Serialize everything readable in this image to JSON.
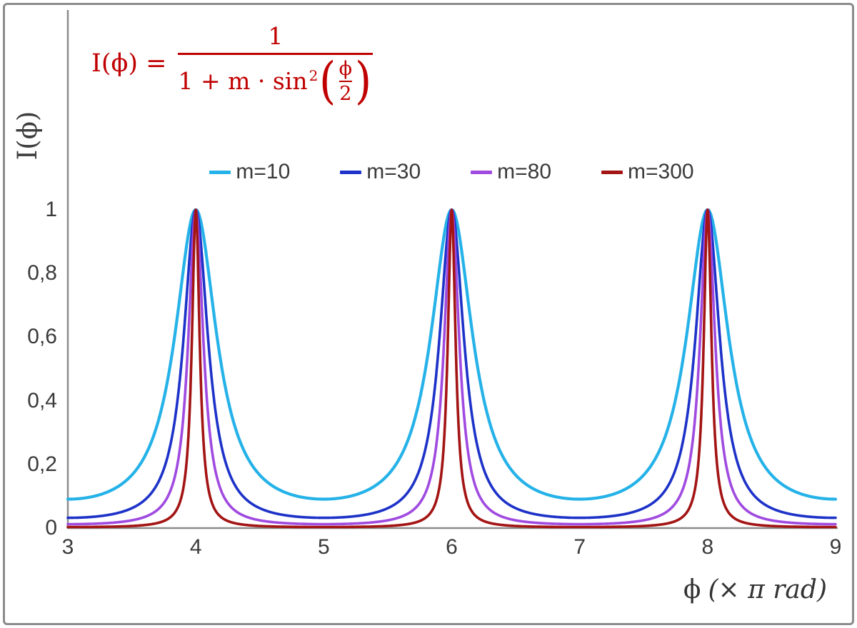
{
  "chart_data": {
    "type": "line",
    "function": "I(phi) = 1 / (1 + m * sin^2(phi/2))",
    "title": "I(ϕ) = 1 / (1 + m·sin²(ϕ/2))",
    "xlabel_phi": "ϕ",
    "xlabel_unit": "(× π rad)",
    "ylabel": "I(ϕ)",
    "x_range": [
      3,
      9
    ],
    "x_unit": "π rad",
    "ylim": [
      0,
      1.6
    ],
    "grid": false,
    "legend_position": "top-center",
    "peaks_at_x": [
      4,
      6,
      8
    ],
    "x_ticks": [
      "3",
      "4",
      "5",
      "6",
      "7",
      "8",
      "9"
    ],
    "y_ticks": [
      {
        "value": 0,
        "label": "0"
      },
      {
        "value": 0.2,
        "label": "0,2"
      },
      {
        "value": 0.4,
        "label": "0,4"
      },
      {
        "value": 0.6,
        "label": "0,6"
      },
      {
        "value": 0.8,
        "label": "0,8"
      },
      {
        "value": 1,
        "label": "1"
      }
    ],
    "series": [
      {
        "name": "m=10",
        "m": 10,
        "color": "#25B2E8"
      },
      {
        "name": "m=30",
        "m": 30,
        "color": "#1D32C8"
      },
      {
        "name": "m=80",
        "m": 80,
        "color": "#A04AE0"
      },
      {
        "name": "m=300",
        "m": 300,
        "color": "#A31414"
      }
    ],
    "axis_color": "#8C8C8C",
    "formula_color": "#C00000"
  },
  "formula": {
    "lhs": "I(ϕ) =",
    "numerator": "1",
    "den_prefix": "1 + m · sin",
    "den_sup": "2",
    "open_paren": "(",
    "close_paren": ")",
    "inner_numerator": "ϕ",
    "inner_denominator": "2"
  }
}
